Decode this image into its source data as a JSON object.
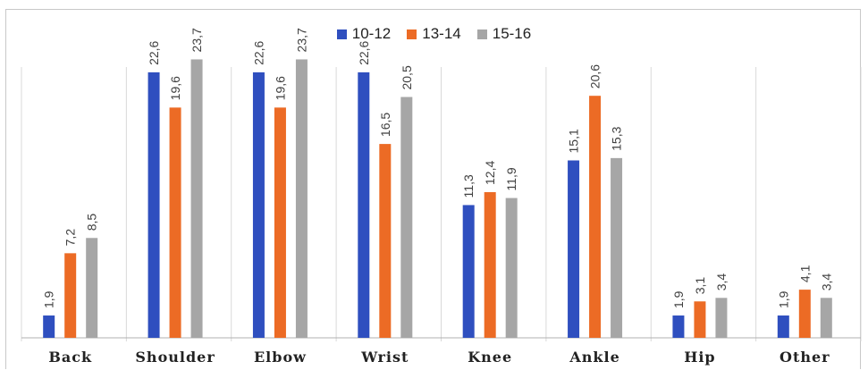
{
  "colors": {
    "series_10_12": "#2f4fbf",
    "series_13_14": "#ec6b25",
    "series_15_16": "#a6a6a6",
    "grid": "#d9d9d9",
    "axis": "#b0b0b0"
  },
  "chart_data": {
    "type": "bar",
    "title": "",
    "xlabel": "",
    "ylabel": "",
    "categories": [
      "Back",
      "Shoulder",
      "Elbow",
      "Wrist",
      "Knee",
      "Ankle",
      "Hip",
      "Other"
    ],
    "series": [
      {
        "name": "10-12",
        "values": [
          1.9,
          22.6,
          22.6,
          22.6,
          11.3,
          15.1,
          1.9,
          1.9
        ],
        "labels": [
          "1,9",
          "22,6",
          "22,6",
          "22,6",
          "11,3",
          "15,1",
          "1,9",
          "1,9"
        ]
      },
      {
        "name": "13-14",
        "values": [
          7.2,
          19.6,
          19.6,
          16.5,
          12.4,
          20.6,
          3.1,
          4.1
        ],
        "labels": [
          "7,2",
          "19,6",
          "19,6",
          "16,5",
          "12,4",
          "20,6",
          "3,1",
          "4,1"
        ]
      },
      {
        "name": "15-16",
        "values": [
          8.5,
          23.7,
          23.7,
          20.5,
          11.9,
          15.3,
          3.4,
          3.4
        ],
        "labels": [
          "8,5",
          "23,7",
          "23,7",
          "20,5",
          "11,9",
          "15,3",
          "3,4",
          "3,4"
        ]
      }
    ],
    "ylim": [
      0,
      25
    ],
    "legend_position": "top-center",
    "grid": "vertical separators between categories"
  }
}
